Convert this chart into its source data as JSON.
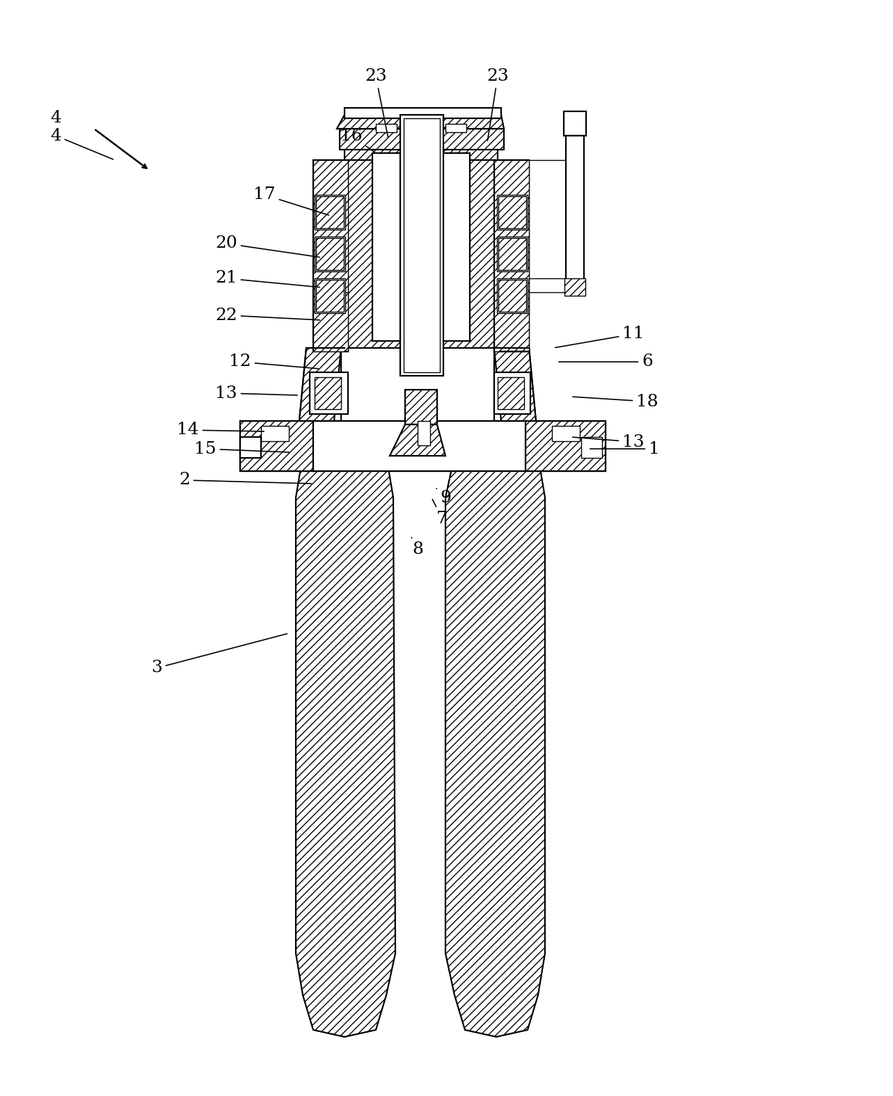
{
  "fig_width": 12.83,
  "fig_height": 15.75,
  "bg_color": "#ffffff",
  "lc": "#000000",
  "lw_main": 1.6,
  "lw_thin": 1.0,
  "lw_thick": 2.2,
  "fs": 18,
  "annotations": [
    [
      "4",
      80,
      195,
      165,
      230
    ],
    [
      "1",
      940,
      645,
      845,
      645
    ],
    [
      "2",
      265,
      690,
      450,
      695
    ],
    [
      "3",
      225,
      960,
      415,
      910
    ],
    [
      "6",
      930,
      520,
      800,
      520
    ],
    [
      "7",
      635,
      745,
      620,
      715
    ],
    [
      "8",
      600,
      790,
      590,
      770
    ],
    [
      "9",
      640,
      715,
      625,
      700
    ],
    [
      "11",
      910,
      480,
      795,
      500
    ],
    [
      "12",
      345,
      520,
      460,
      530
    ],
    [
      "13",
      325,
      565,
      430,
      568
    ],
    [
      "13",
      910,
      635,
      820,
      628
    ],
    [
      "14",
      270,
      618,
      382,
      620
    ],
    [
      "15",
      295,
      645,
      418,
      650
    ],
    [
      "16",
      505,
      195,
      540,
      220
    ],
    [
      "17",
      380,
      280,
      475,
      310
    ],
    [
      "18",
      930,
      577,
      820,
      570
    ],
    [
      "20",
      325,
      350,
      462,
      370
    ],
    [
      "21",
      325,
      400,
      462,
      413
    ],
    [
      "22",
      325,
      453,
      462,
      460
    ],
    [
      "23",
      540,
      110,
      558,
      200
    ],
    [
      "23",
      715,
      110,
      700,
      205
    ]
  ]
}
